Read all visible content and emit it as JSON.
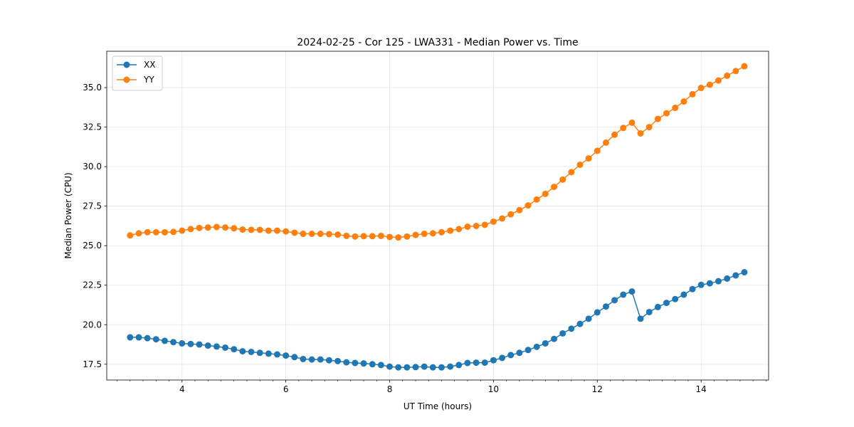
{
  "chart_data": {
    "type": "line",
    "title": "2024-02-25 - Cor 125 - LWA331 - Median Power vs. Time",
    "xlabel": "UT Time (hours)",
    "ylabel": "Median Power (CPU)",
    "xlim": [
      2.55,
      15.3
    ],
    "ylim": [
      16.5,
      37.3
    ],
    "grid": true,
    "legend_location": "upper left",
    "x_ticks": [
      4,
      6,
      8,
      10,
      12,
      14
    ],
    "x_tick_labels": [
      "4",
      "6",
      "8",
      "10",
      "12",
      "14"
    ],
    "x_minor_ticks": [
      2.75,
      3.0,
      3.25,
      3.5,
      3.75,
      4.25,
      4.5,
      4.75,
      5.0,
      5.25,
      5.5,
      5.75,
      6.25,
      6.5,
      6.75,
      7.0,
      7.25,
      7.5,
      7.75,
      8.25,
      8.5,
      8.75,
      9.0,
      9.25,
      9.5,
      9.75,
      10.25,
      10.5,
      10.75,
      11.0,
      11.25,
      11.5,
      11.75,
      12.25,
      12.5,
      12.75,
      13.0,
      13.25,
      13.5,
      13.75,
      14.25,
      14.5,
      14.75,
      15.0,
      15.25
    ],
    "y_ticks": [
      17.5,
      20.0,
      22.5,
      25.0,
      27.5,
      30.0,
      32.5,
      35.0
    ],
    "y_tick_labels": [
      "17.5",
      "20.0",
      "22.5",
      "25.0",
      "27.5",
      "30.0",
      "32.5",
      "35.0"
    ],
    "x": [
      3.0,
      3.167,
      3.333,
      3.5,
      3.667,
      3.833,
      4.0,
      4.167,
      4.333,
      4.5,
      4.667,
      4.833,
      5.0,
      5.167,
      5.333,
      5.5,
      5.667,
      5.833,
      6.0,
      6.167,
      6.333,
      6.5,
      6.667,
      6.833,
      7.0,
      7.167,
      7.333,
      7.5,
      7.667,
      7.833,
      8.0,
      8.167,
      8.333,
      8.5,
      8.667,
      8.833,
      9.0,
      9.167,
      9.333,
      9.5,
      9.667,
      9.833,
      10.0,
      10.167,
      10.333,
      10.5,
      10.667,
      10.833,
      11.0,
      11.167,
      11.333,
      11.5,
      11.667,
      11.833,
      12.0,
      12.167,
      12.333,
      12.5,
      12.667,
      12.833,
      13.0,
      13.167,
      13.333,
      13.5,
      13.667,
      13.833,
      14.0,
      14.167,
      14.333,
      14.5,
      14.667,
      14.833
    ],
    "series": [
      {
        "name": "XX",
        "color": "#1f77b4",
        "values": [
          19.2,
          19.2,
          19.15,
          19.08,
          18.98,
          18.9,
          18.82,
          18.78,
          18.75,
          18.68,
          18.62,
          18.55,
          18.45,
          18.32,
          18.28,
          18.22,
          18.17,
          18.12,
          18.05,
          17.95,
          17.83,
          17.8,
          17.8,
          17.75,
          17.7,
          17.62,
          17.58,
          17.55,
          17.5,
          17.45,
          17.35,
          17.3,
          17.3,
          17.32,
          17.35,
          17.3,
          17.3,
          17.35,
          17.45,
          17.58,
          17.6,
          17.6,
          17.75,
          17.9,
          18.08,
          18.22,
          18.4,
          18.6,
          18.82,
          19.1,
          19.45,
          19.75,
          20.05,
          20.38,
          20.78,
          21.15,
          21.55,
          21.9,
          22.1,
          20.38,
          20.8,
          21.12,
          21.38,
          21.62,
          21.9,
          22.25,
          22.52,
          22.62,
          22.75,
          22.92,
          23.12,
          23.32
        ]
      },
      {
        "name": "YY",
        "color": "#ff7f0e",
        "values": [
          25.65,
          25.78,
          25.85,
          25.85,
          25.85,
          25.87,
          25.95,
          26.05,
          26.12,
          26.15,
          26.18,
          26.15,
          26.1,
          26.02,
          26.0,
          26.0,
          25.95,
          25.95,
          25.9,
          25.82,
          25.75,
          25.75,
          25.75,
          25.73,
          25.7,
          25.62,
          25.58,
          25.6,
          25.6,
          25.62,
          25.55,
          25.52,
          25.58,
          25.68,
          25.75,
          25.78,
          25.85,
          25.95,
          26.05,
          26.2,
          26.25,
          26.32,
          26.52,
          26.72,
          26.98,
          27.25,
          27.55,
          27.92,
          28.28,
          28.72,
          29.18,
          29.65,
          30.12,
          30.52,
          31.0,
          31.52,
          32.02,
          32.45,
          32.78,
          32.1,
          32.5,
          33.02,
          33.38,
          33.72,
          34.12,
          34.58,
          34.98,
          35.18,
          35.45,
          35.75,
          36.05,
          36.35
        ]
      }
    ]
  }
}
